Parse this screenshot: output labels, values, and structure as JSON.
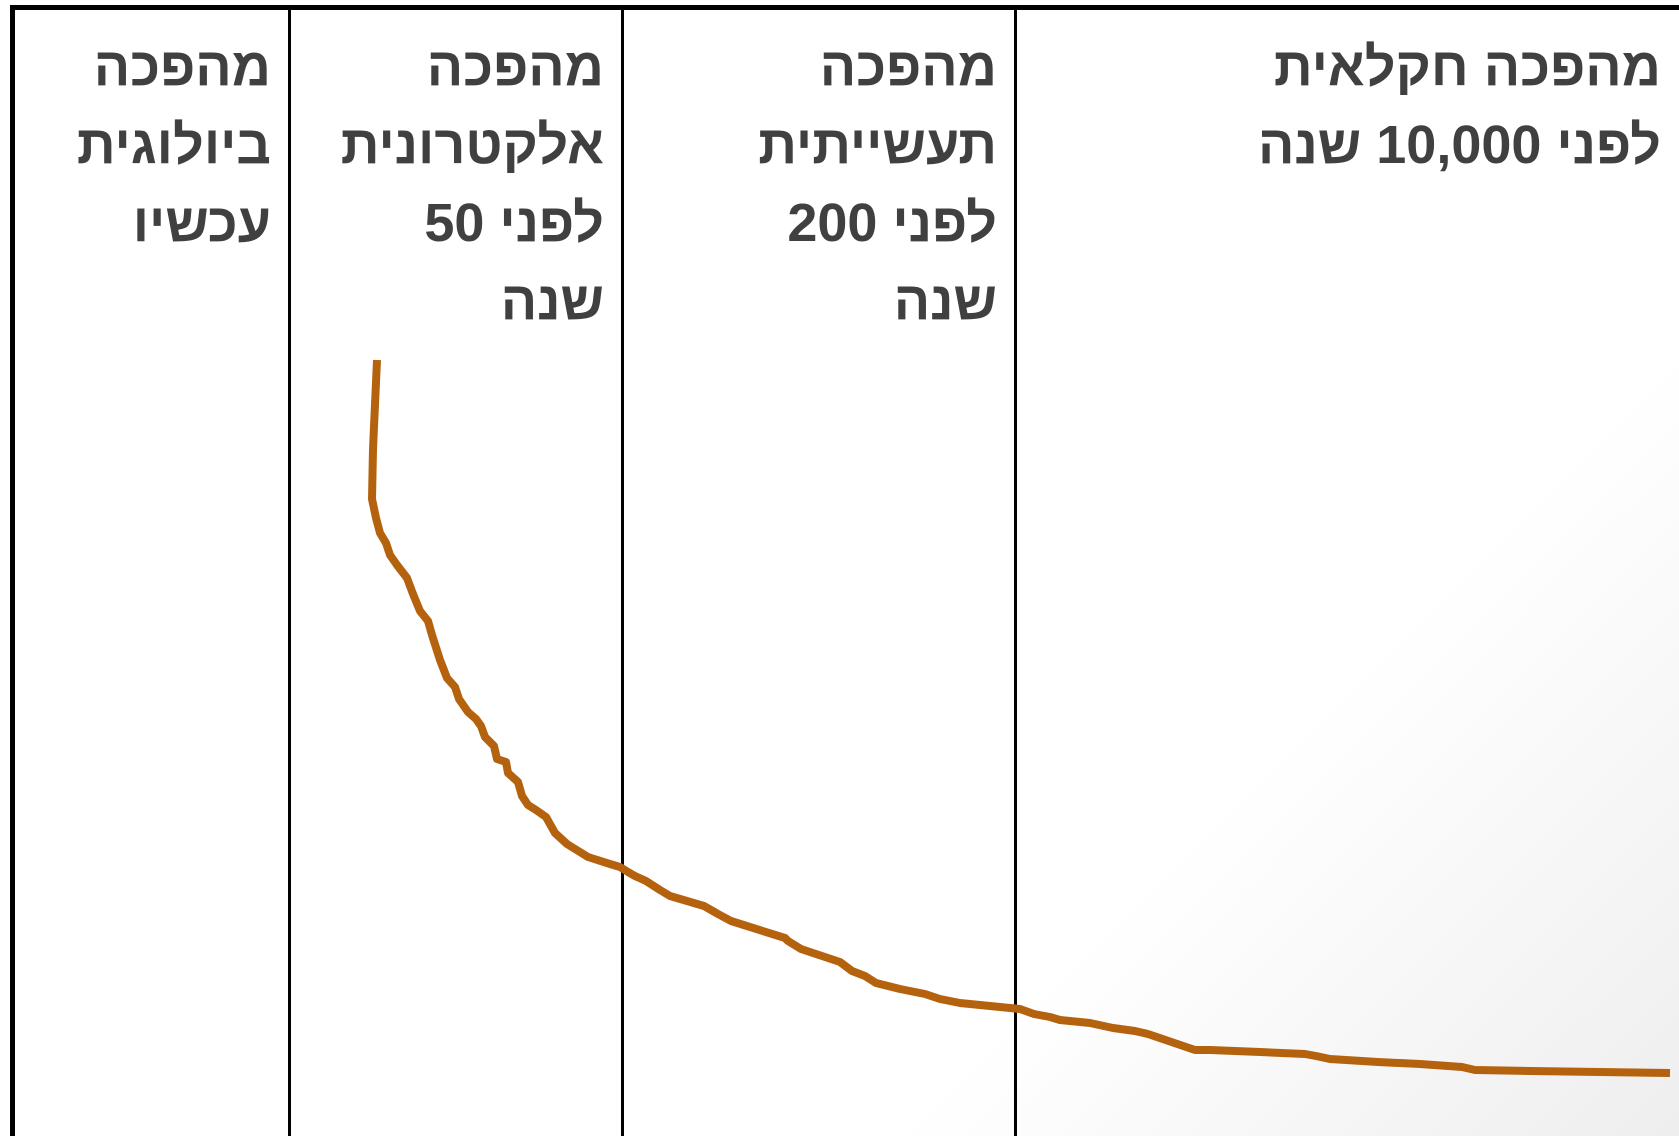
{
  "columns": [
    {
      "name": "agricultural",
      "lines": [
        "מהפכה חקלאית",
        "לפני 10,000 שנה"
      ]
    },
    {
      "name": "industrial",
      "lines": [
        "מהפכה",
        "תעשייתית",
        "לפני 200",
        "שנה"
      ]
    },
    {
      "name": "electronic",
      "lines": [
        "מהפכה",
        "אלקטרונית",
        "לפני 50",
        "שנה"
      ]
    },
    {
      "name": "biological",
      "lines": [
        "מהפכה",
        "ביולוגית",
        "עכשיו"
      ]
    }
  ],
  "colors": {
    "curve": "#b5620e",
    "text": "#404040",
    "lines": "#000000"
  }
}
